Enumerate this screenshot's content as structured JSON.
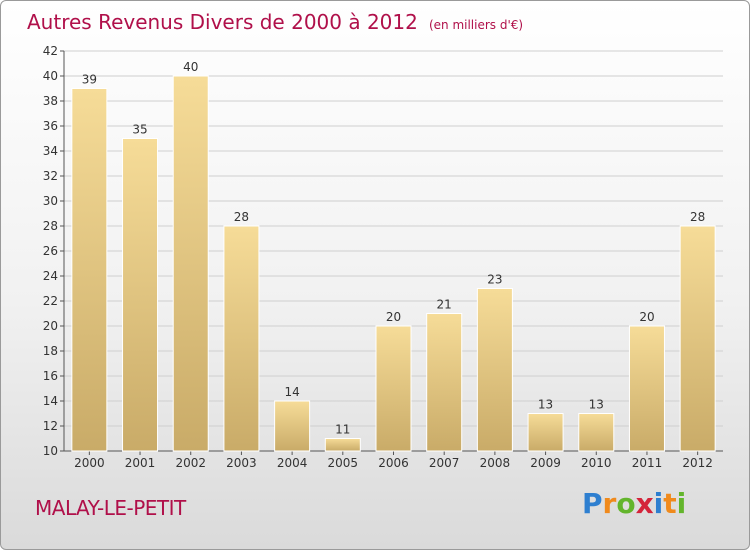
{
  "header": {
    "title": "Autres Revenus Divers de 2000 à 2012",
    "subtitle": "(en milliers d'€)"
  },
  "footer": {
    "town": "MALAY-LE-PETIT",
    "brand_letters": [
      {
        "ch": "P",
        "color": "#2e7fd0"
      },
      {
        "ch": "r",
        "color": "#f08a1c"
      },
      {
        "ch": "o",
        "color": "#63b52c"
      },
      {
        "ch": "x",
        "color": "#d4243a"
      },
      {
        "ch": "i",
        "color": "#2e7fd0"
      },
      {
        "ch": "t",
        "color": "#f08a1c"
      },
      {
        "ch": "i",
        "color": "#63b52c"
      }
    ]
  },
  "colors": {
    "bar_top": "#f6dc98",
    "bar_bottom": "#c9ab68",
    "title": "#b0104a",
    "grid": "#cfcfcf"
  },
  "chart_data": {
    "type": "bar",
    "title": "Autres Revenus Divers de 2000 à 2012",
    "subtitle": "(en milliers d'€)",
    "categories": [
      "2000",
      "2001",
      "2002",
      "2003",
      "2004",
      "2005",
      "2006",
      "2007",
      "2008",
      "2009",
      "2010",
      "2011",
      "2012"
    ],
    "values": [
      39,
      35,
      40,
      28,
      14,
      11,
      20,
      21,
      23,
      13,
      13,
      20,
      28
    ],
    "ylim": [
      10,
      42
    ],
    "yticks": [
      10,
      12,
      14,
      16,
      18,
      20,
      22,
      24,
      26,
      28,
      30,
      32,
      34,
      36,
      38,
      40,
      42
    ],
    "xlabel": "",
    "ylabel": "",
    "grid": true,
    "legend": "none"
  }
}
